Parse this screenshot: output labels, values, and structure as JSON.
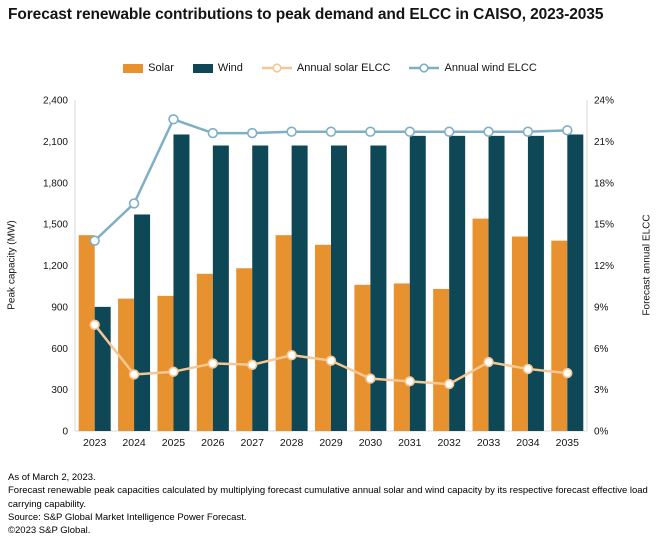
{
  "header": {
    "title": "Forecast renewable contributions to peak demand and ELCC in CAISO, 2023-2035"
  },
  "chart_data": {
    "type": "bar+line",
    "title": "Forecast renewable contributions to peak demand and ELCC in CAISO, 2023-2035",
    "categories": [
      "2023",
      "2024",
      "2025",
      "2026",
      "2027",
      "2028",
      "2029",
      "2030",
      "2031",
      "2032",
      "2033",
      "2034",
      "2035"
    ],
    "bar_series": [
      {
        "name": "Solar",
        "axis": "left",
        "color": "#E8922F",
        "values": [
          1420,
          960,
          980,
          1140,
          1180,
          1420,
          1350,
          1060,
          1070,
          1030,
          1540,
          1410,
          1380
        ]
      },
      {
        "name": "Wind",
        "axis": "left",
        "color": "#0E4756",
        "values": [
          900,
          1570,
          2150,
          2070,
          2070,
          2070,
          2070,
          2070,
          2140,
          2140,
          2140,
          2140,
          2150
        ]
      }
    ],
    "line_series": [
      {
        "name": "Annual solar ELCC",
        "axis": "right",
        "color": "#F5C794",
        "values": [
          7.7,
          4.1,
          4.3,
          4.9,
          4.8,
          5.5,
          5.1,
          3.8,
          3.6,
          3.4,
          5.0,
          4.5,
          4.2
        ]
      },
      {
        "name": "Annual wind ELCC",
        "axis": "right",
        "color": "#7FAFC4",
        "values": [
          13.8,
          16.5,
          22.6,
          21.6,
          21.6,
          21.7,
          21.7,
          21.7,
          21.7,
          21.7,
          21.7,
          21.7,
          21.8
        ]
      }
    ],
    "left_axis": {
      "label": "Peak capacity (MW)",
      "min": 0,
      "max": 2400,
      "step": 300,
      "suffix": ""
    },
    "right_axis": {
      "label": "Forecast annual ELCC",
      "min": 0,
      "max": 24,
      "step": 3,
      "suffix": "%"
    },
    "legend_position": "top",
    "grid": false,
    "axis_line_color": "#D9D9D9"
  },
  "footer": {
    "as_of": "As of March 2, 2023.",
    "note": "Forecast renewable peak capacities calculated by multiplying forecast cumulative annual solar and wind capacity by its respective forecast effective load carrying capability.",
    "source": "Source: S&P Global Market Intelligence Power Forecast.",
    "copyright": "©2023 S&P Global."
  }
}
